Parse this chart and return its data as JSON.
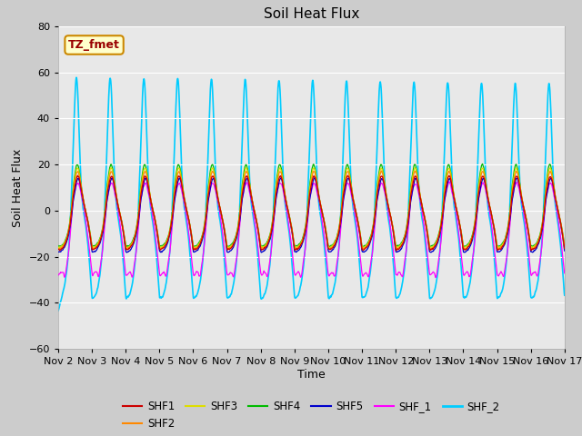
{
  "title": "Soil Heat Flux",
  "xlabel": "Time",
  "ylabel": "Soil Heat Flux",
  "ylim": [
    -60,
    80
  ],
  "yticks": [
    -60,
    -40,
    -20,
    0,
    20,
    40,
    60,
    80
  ],
  "n_days": 15,
  "series_colors": {
    "SHF1": "#cc0000",
    "SHF2": "#ff8800",
    "SHF3": "#dddd00",
    "SHF4": "#00bb00",
    "SHF5": "#0000cc",
    "SHF_1": "#ff00ff",
    "SHF_2": "#00ccff"
  },
  "legend_label": "TZ_fmet",
  "fig_bg_color": "#cccccc",
  "plot_bg_color": "#e8e8e8",
  "annotation_bg": "#ffffcc",
  "annotation_border": "#cc8800"
}
